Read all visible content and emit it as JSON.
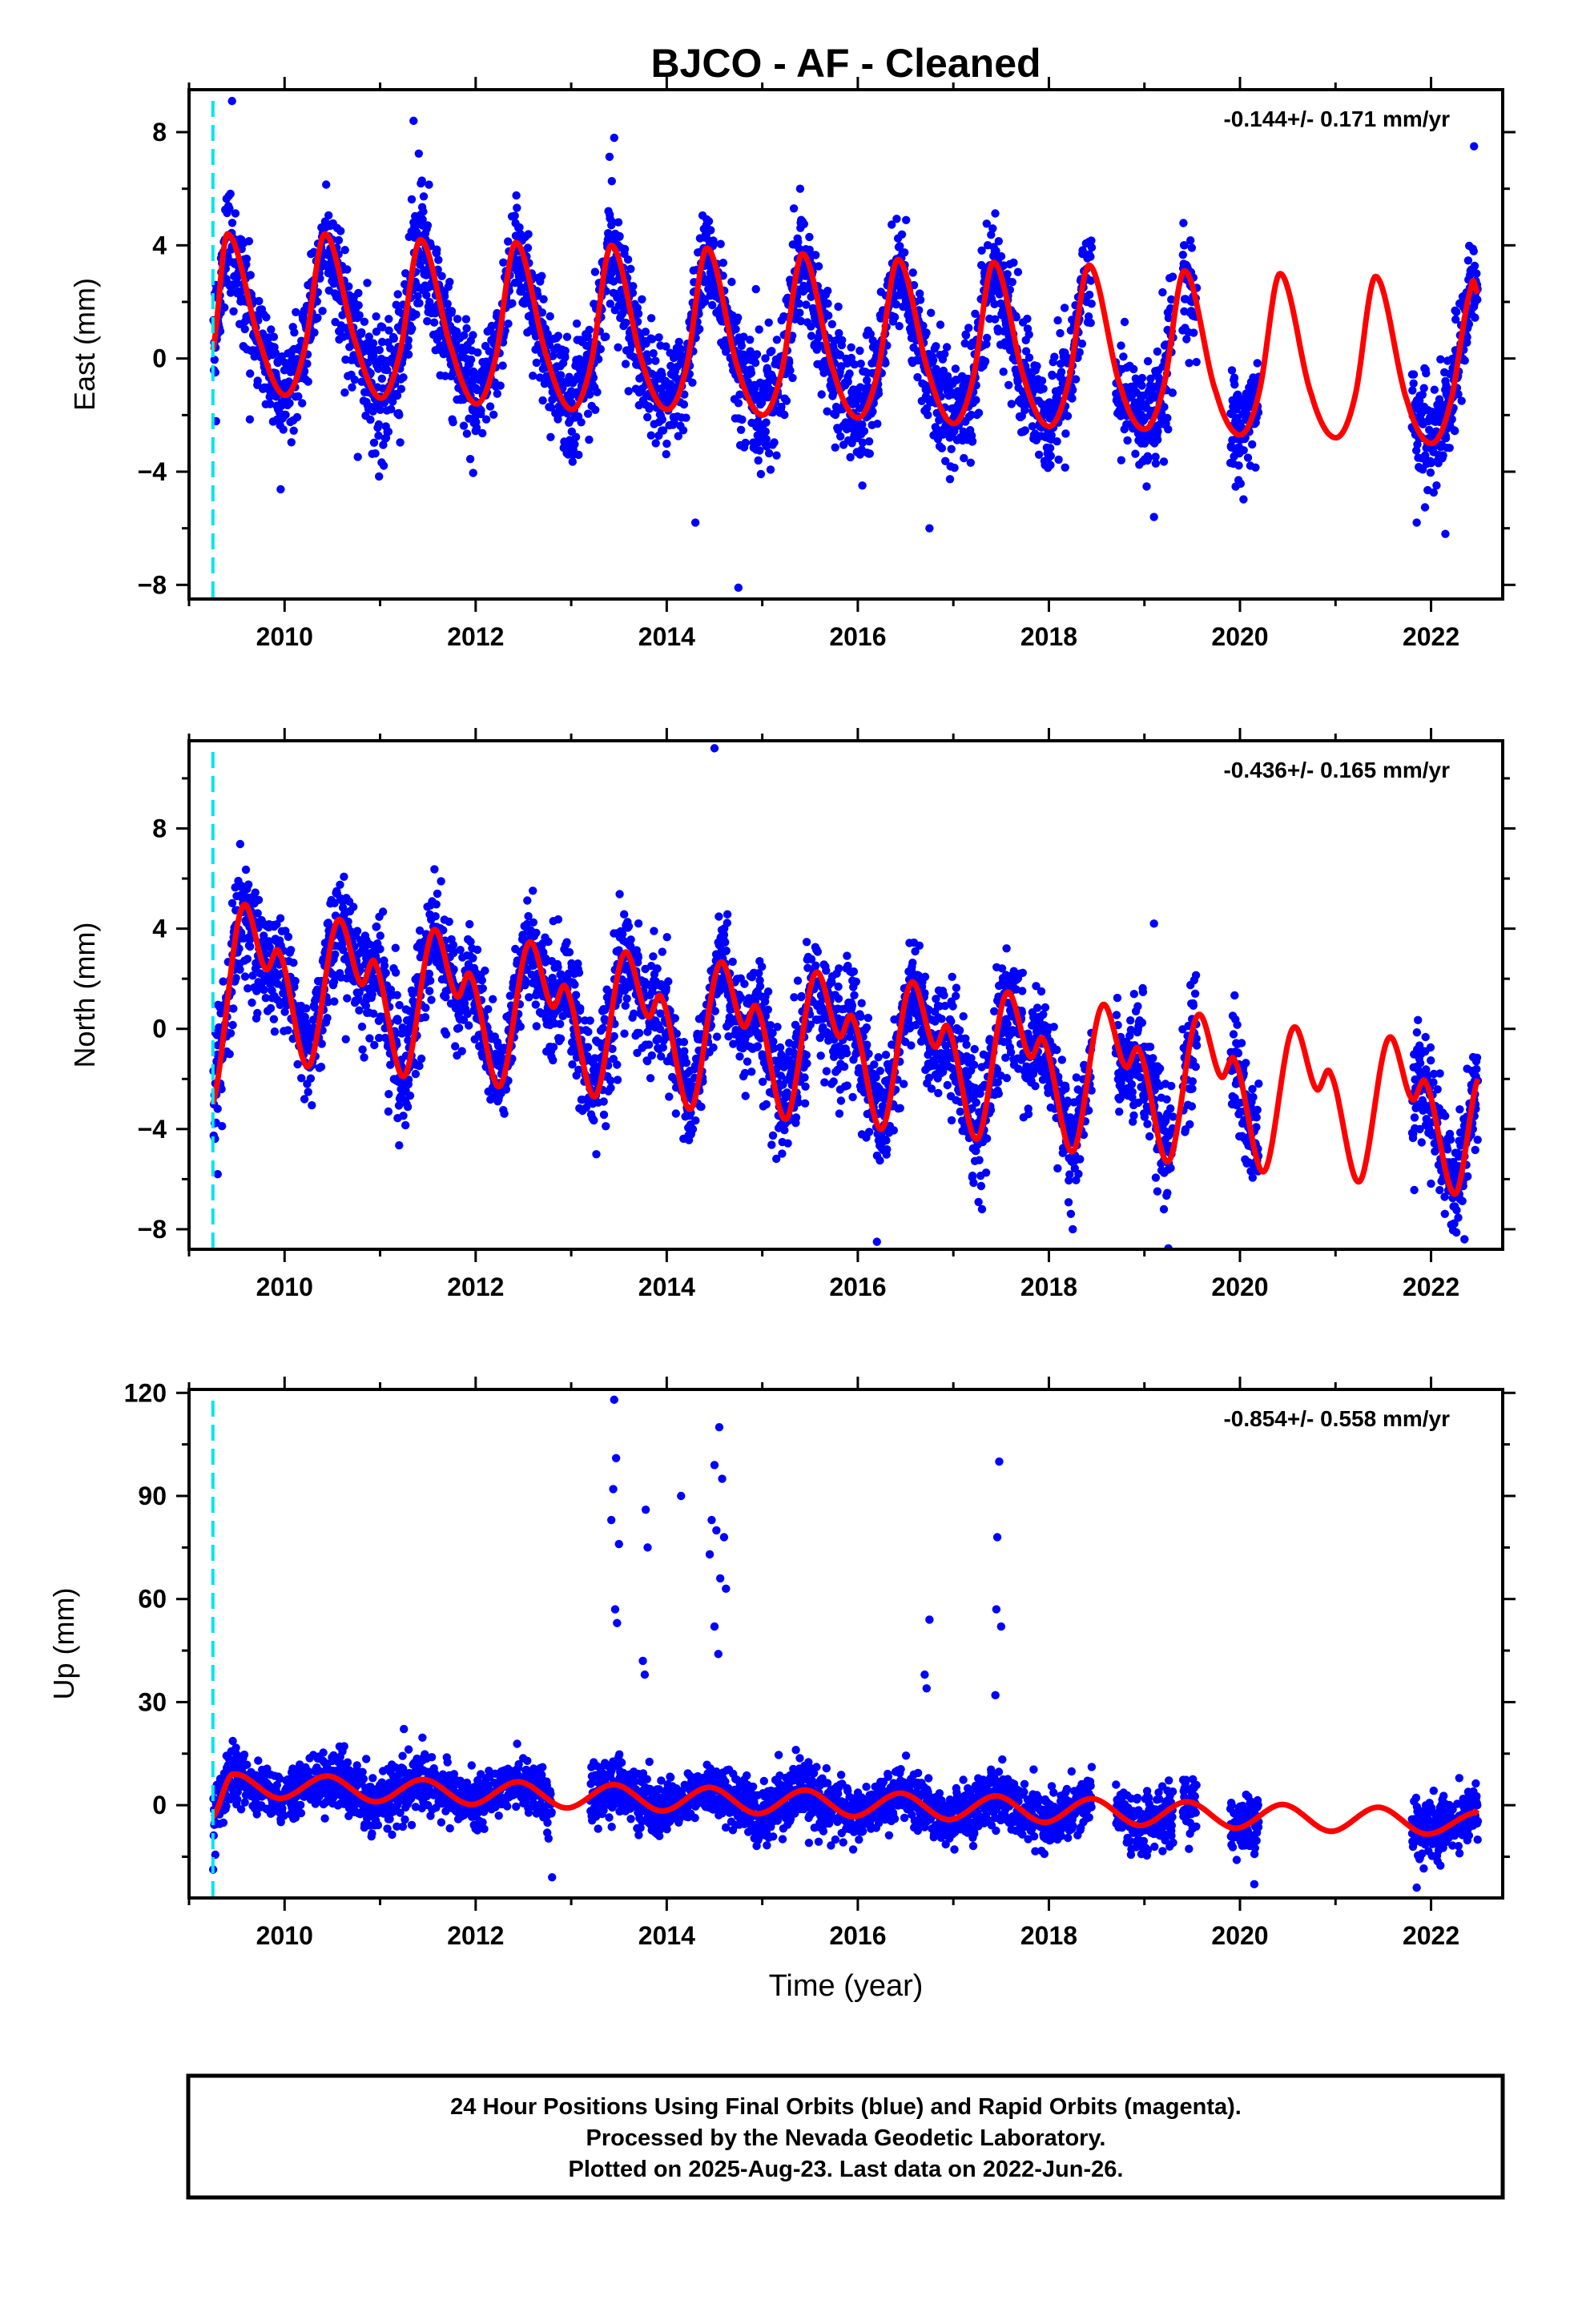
{
  "figure": {
    "title": "BJCO  - AF - Cleaned",
    "xlabel": "Time (year)",
    "footer_lines": [
      "24 Hour Positions Using Final Orbits (blue) and Rapid Orbits (magenta).",
      "Processed by the Nevada Geodetic Laboratory.",
      "Plotted on 2025-Aug-23. Last data on 2022-Jun-26."
    ],
    "colors": {
      "final_orbits": "#0000ff",
      "model_fit": "#ff0000",
      "event_marker": "#00e5ee",
      "frame": "#000000"
    }
  },
  "chart_data": [
    {
      "type": "scatter",
      "component": "East",
      "ylabel": "East (mm)",
      "rate_label": "-0.144+/- 0.171 mm/yr",
      "xlim": [
        2009.0,
        2022.75
      ],
      "ylim": [
        -8.5,
        9.5
      ],
      "yticks": [
        -8,
        -4,
        0,
        4,
        8
      ],
      "xticks": [
        2010,
        2012,
        2014,
        2016,
        2018,
        2020,
        2022
      ],
      "marker_year": 2009.25,
      "data_segments": [
        [
          2009.25,
          2018.45
        ],
        [
          2018.7,
          2019.3
        ],
        [
          2019.4,
          2019.55
        ],
        [
          2019.9,
          2020.2
        ],
        [
          2021.8,
          2022.49
        ]
      ],
      "series": [
        {
          "name": "Final Orbits",
          "amplitude_mm": 3.0,
          "phase_peak_year_fraction": 0.42,
          "start_offset_mm": 1.6,
          "trend_mm_per_yr": -0.144,
          "scatter_sd_mm": 1.0,
          "outliers": [
            [
              2009.45,
              9.1
            ],
            [
              2011.35,
              8.4
            ],
            [
              2013.45,
              7.8
            ],
            [
              2014.3,
              -5.8
            ],
            [
              2014.75,
              -8.1
            ],
            [
              2016.75,
              -6.0
            ],
            [
              2019.1,
              -5.6
            ],
            [
              2021.85,
              -5.8
            ],
            [
              2022.15,
              -6.2
            ],
            [
              2022.45,
              7.5
            ]
          ]
        }
      ],
      "model": {
        "name": "Model fit",
        "points": [
          [
            2009.25,
            0.3
          ],
          [
            2009.4,
            4.4
          ],
          [
            2009.75,
            0.5
          ],
          [
            2010.0,
            -1.3
          ],
          [
            2010.2,
            0.2
          ],
          [
            2010.42,
            4.4
          ],
          [
            2010.75,
            0.5
          ],
          [
            2011.0,
            -1.4
          ],
          [
            2011.2,
            0.1
          ],
          [
            2011.42,
            4.2
          ],
          [
            2011.75,
            0.3
          ],
          [
            2012.0,
            -1.6
          ],
          [
            2012.2,
            -0.1
          ],
          [
            2012.42,
            4.1
          ],
          [
            2012.75,
            0.0
          ],
          [
            2013.0,
            -1.8
          ],
          [
            2013.2,
            -0.3
          ],
          [
            2013.42,
            4.0
          ],
          [
            2013.75,
            -0.2
          ],
          [
            2014.0,
            -1.8
          ],
          [
            2014.2,
            -0.4
          ],
          [
            2014.42,
            3.9
          ],
          [
            2014.75,
            -0.4
          ],
          [
            2015.0,
            -2.0
          ],
          [
            2015.2,
            -0.5
          ],
          [
            2015.42,
            3.7
          ],
          [
            2015.75,
            -0.5
          ],
          [
            2016.0,
            -2.1
          ],
          [
            2016.2,
            -0.6
          ],
          [
            2016.42,
            3.5
          ],
          [
            2016.75,
            -0.6
          ],
          [
            2017.0,
            -2.3
          ],
          [
            2017.2,
            -0.8
          ],
          [
            2017.42,
            3.4
          ],
          [
            2017.75,
            -0.8
          ],
          [
            2018.0,
            -2.4
          ],
          [
            2018.2,
            -0.9
          ],
          [
            2018.42,
            3.3
          ],
          [
            2018.75,
            -1.0
          ],
          [
            2019.0,
            -2.5
          ],
          [
            2019.2,
            -1.0
          ],
          [
            2019.42,
            3.1
          ],
          [
            2019.75,
            -1.2
          ],
          [
            2020.0,
            -2.7
          ],
          [
            2020.2,
            -1.2
          ],
          [
            2020.42,
            3.0
          ],
          [
            2020.75,
            -1.3
          ],
          [
            2021.0,
            -2.8
          ],
          [
            2021.2,
            -1.4
          ],
          [
            2021.42,
            2.9
          ],
          [
            2021.75,
            -1.5
          ],
          [
            2022.0,
            -3.0
          ],
          [
            2022.2,
            -1.6
          ],
          [
            2022.42,
            2.5
          ],
          [
            2022.49,
            2.3
          ]
        ]
      }
    },
    {
      "type": "scatter",
      "component": "North",
      "ylabel": "North (mm)",
      "rate_label": "-0.436+/- 0.165 mm/yr",
      "xlim": [
        2009.0,
        2022.75
      ],
      "ylim": [
        -8.8,
        11.5
      ],
      "yticks": [
        -8,
        -4,
        0,
        4,
        8
      ],
      "xticks": [
        2010,
        2012,
        2014,
        2016,
        2018,
        2020,
        2022
      ],
      "marker_year": 2009.25,
      "data_segments": [
        [
          2009.25,
          2018.45
        ],
        [
          2018.7,
          2019.3
        ],
        [
          2019.4,
          2019.55
        ],
        [
          2019.9,
          2020.2
        ],
        [
          2021.8,
          2022.49
        ]
      ],
      "series": [
        {
          "name": "Final Orbits",
          "amplitude_mm": 2.3,
          "phase_peak_year_fraction": 0.55,
          "start_offset_mm": 1.8,
          "trend_mm_per_yr": -0.436,
          "scatter_sd_mm": 1.1,
          "outliers": [
            [
              2014.5,
              11.2
            ],
            [
              2019.1,
              4.2
            ],
            [
              2016.2,
              -8.5
            ],
            [
              2017.3,
              -7.2
            ],
            [
              2018.25,
              -8.0
            ],
            [
              2022.35,
              -8.4
            ],
            [
              2009.3,
              -5.8
            ]
          ]
        }
      ],
      "model": {
        "name": "Model fit",
        "points": [
          [
            2009.25,
            -3.0
          ],
          [
            2009.55,
            4.8
          ],
          [
            2009.8,
            2.4
          ],
          [
            2009.95,
            3.0
          ],
          [
            2010.25,
            -1.5
          ],
          [
            2010.55,
            4.3
          ],
          [
            2010.8,
            1.8
          ],
          [
            2010.95,
            2.6
          ],
          [
            2011.25,
            -1.9
          ],
          [
            2011.55,
            3.9
          ],
          [
            2011.8,
            1.3
          ],
          [
            2011.95,
            2.1
          ],
          [
            2012.25,
            -2.3
          ],
          [
            2012.55,
            3.4
          ],
          [
            2012.8,
            0.9
          ],
          [
            2012.95,
            1.6
          ],
          [
            2013.25,
            -2.7
          ],
          [
            2013.55,
            3.0
          ],
          [
            2013.8,
            0.5
          ],
          [
            2013.95,
            1.2
          ],
          [
            2014.25,
            -3.2
          ],
          [
            2014.55,
            2.6
          ],
          [
            2014.8,
            0.1
          ],
          [
            2014.95,
            0.8
          ],
          [
            2015.25,
            -3.6
          ],
          [
            2015.55,
            2.2
          ],
          [
            2015.8,
            -0.3
          ],
          [
            2015.95,
            0.4
          ],
          [
            2016.25,
            -4.0
          ],
          [
            2016.55,
            1.8
          ],
          [
            2016.8,
            -0.7
          ],
          [
            2016.95,
            0.0
          ],
          [
            2017.25,
            -4.4
          ],
          [
            2017.55,
            1.4
          ],
          [
            2017.8,
            -1.1
          ],
          [
            2017.95,
            -0.5
          ],
          [
            2018.25,
            -4.9
          ],
          [
            2018.55,
            0.9
          ],
          [
            2018.8,
            -1.5
          ],
          [
            2018.95,
            -0.9
          ],
          [
            2019.25,
            -5.3
          ],
          [
            2019.55,
            0.5
          ],
          [
            2019.8,
            -1.9
          ],
          [
            2019.95,
            -1.3
          ],
          [
            2020.25,
            -5.7
          ],
          [
            2020.55,
            0.0
          ],
          [
            2020.8,
            -2.4
          ],
          [
            2020.95,
            -1.8
          ],
          [
            2021.25,
            -6.1
          ],
          [
            2021.55,
            -0.4
          ],
          [
            2021.8,
            -2.8
          ],
          [
            2021.95,
            -2.2
          ],
          [
            2022.25,
            -6.6
          ],
          [
            2022.49,
            -2.0
          ]
        ]
      }
    },
    {
      "type": "scatter",
      "component": "Up",
      "ylabel": "Up (mm)",
      "rate_label": "-0.854+/- 0.558 mm/yr",
      "xlim": [
        2009.0,
        2022.75
      ],
      "ylim": [
        -27,
        121
      ],
      "yticks": [
        0,
        30,
        60,
        90,
        120
      ],
      "xticks": [
        2010,
        2012,
        2014,
        2016,
        2018,
        2020,
        2022
      ],
      "marker_year": 2009.25,
      "data_segments": [
        [
          2009.25,
          2012.8
        ],
        [
          2013.2,
          2018.45
        ],
        [
          2018.7,
          2019.3
        ],
        [
          2019.4,
          2019.55
        ],
        [
          2019.9,
          2020.2
        ],
        [
          2021.8,
          2022.49
        ]
      ],
      "series": [
        {
          "name": "Final Orbits",
          "amplitude_mm": 3.0,
          "phase_peak_year_fraction": 0.45,
          "start_offset_mm": 6.5,
          "trend_mm_per_yr": -0.854,
          "scatter_sd_mm": 4.0,
          "outliers": [
            [
              2013.45,
              118
            ],
            [
              2013.47,
              101
            ],
            [
              2013.44,
              92
            ],
            [
              2013.42,
              83
            ],
            [
              2013.5,
              76
            ],
            [
              2013.46,
              57
            ],
            [
              2013.48,
              53
            ],
            [
              2013.78,
              86
            ],
            [
              2013.8,
              75
            ],
            [
              2013.75,
              42
            ],
            [
              2013.77,
              38
            ],
            [
              2014.15,
              90
            ],
            [
              2014.55,
              110
            ],
            [
              2014.5,
              99
            ],
            [
              2014.58,
              95
            ],
            [
              2014.47,
              83
            ],
            [
              2014.52,
              80
            ],
            [
              2014.6,
              78
            ],
            [
              2014.45,
              73
            ],
            [
              2014.56,
              66
            ],
            [
              2014.62,
              63
            ],
            [
              2014.5,
              52
            ],
            [
              2014.54,
              44
            ],
            [
              2016.75,
              54
            ],
            [
              2016.7,
              38
            ],
            [
              2016.72,
              34
            ],
            [
              2017.48,
              100
            ],
            [
              2017.46,
              78
            ],
            [
              2017.45,
              57
            ],
            [
              2017.5,
              52
            ],
            [
              2017.44,
              32
            ],
            [
              2012.8,
              -21
            ],
            [
              2020.15,
              -23
            ],
            [
              2021.85,
              -24
            ]
          ]
        }
      ],
      "model": {
        "name": "Model fit",
        "points": [
          [
            2009.25,
            -3.5
          ],
          [
            2009.45,
            9.0
          ],
          [
            2009.95,
            2.0
          ],
          [
            2010.45,
            8.5
          ],
          [
            2010.95,
            1.0
          ],
          [
            2011.45,
            7.5
          ],
          [
            2011.95,
            0.2
          ],
          [
            2012.45,
            6.8
          ],
          [
            2012.95,
            -0.8
          ],
          [
            2013.45,
            6.0
          ],
          [
            2013.95,
            -1.7
          ],
          [
            2014.45,
            5.2
          ],
          [
            2014.95,
            -2.5
          ],
          [
            2015.45,
            4.4
          ],
          [
            2015.95,
            -3.3
          ],
          [
            2016.45,
            3.5
          ],
          [
            2016.95,
            -4.2
          ],
          [
            2017.45,
            2.7
          ],
          [
            2017.95,
            -5.0
          ],
          [
            2018.45,
            1.9
          ],
          [
            2018.95,
            -5.9
          ],
          [
            2019.45,
            1.0
          ],
          [
            2019.95,
            -6.7
          ],
          [
            2020.45,
            0.2
          ],
          [
            2020.95,
            -7.6
          ],
          [
            2021.45,
            -0.6
          ],
          [
            2021.95,
            -8.4
          ],
          [
            2022.45,
            -2.2
          ],
          [
            2022.49,
            -2.5
          ]
        ]
      }
    }
  ]
}
